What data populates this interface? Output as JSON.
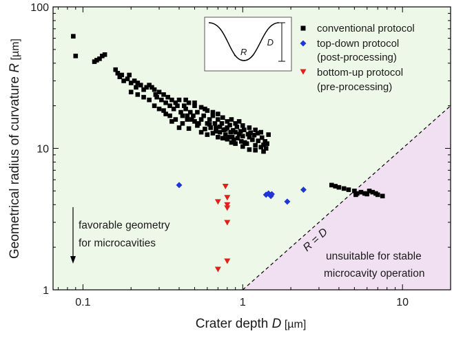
{
  "chart_data": {
    "type": "scatter",
    "xscale": "log",
    "yscale": "log",
    "xlim": [
      0.065,
      20
    ],
    "ylim": [
      1,
      100
    ],
    "x_ticks": [
      0.1,
      1,
      10
    ],
    "y_ticks": [
      1,
      10,
      100
    ],
    "x_tick_labels": [
      "0.1",
      "1",
      "10"
    ],
    "y_tick_labels": [
      "1",
      "10",
      "100"
    ],
    "xlabel": {
      "prefix": "Crater depth ",
      "var": "D",
      "unit": " [µm]"
    },
    "ylabel": {
      "prefix": "Geometrical radius of curvature ",
      "var": "R",
      "unit": " [µm]"
    },
    "grid": false,
    "legend_position": "top-right",
    "regions": {
      "favorable_color": "#eef8e8",
      "unsuitable_color": "#f1e0f1",
      "boundary": "R = D"
    },
    "line_label": "R = D",
    "annotations": {
      "favorable_line1": "favorable geometry",
      "favorable_line2": "for microcavities",
      "unsuitable_line1": "unsuitable for stable",
      "unsuitable_line2": "microcavity operation"
    },
    "inset": {
      "d_label": "D",
      "r_label": "R"
    },
    "series": [
      {
        "name": "conventional protocol",
        "marker": "square",
        "color": "#000000",
        "points": [
          [
            0.087,
            62
          ],
          [
            0.09,
            45
          ],
          [
            0.118,
            41
          ],
          [
            0.122,
            42
          ],
          [
            0.127,
            43
          ],
          [
            0.132,
            45
          ],
          [
            0.137,
            46
          ],
          [
            0.16,
            36
          ],
          [
            0.165,
            34
          ],
          [
            0.17,
            32
          ],
          [
            0.175,
            33
          ],
          [
            0.18,
            30
          ],
          [
            0.19,
            31
          ],
          [
            0.195,
            33
          ],
          [
            0.2,
            29
          ],
          [
            0.21,
            30
          ],
          [
            0.215,
            27
          ],
          [
            0.22,
            29
          ],
          [
            0.23,
            28
          ],
          [
            0.24,
            26
          ],
          [
            0.25,
            27
          ],
          [
            0.26,
            28
          ],
          [
            0.27,
            27
          ],
          [
            0.28,
            26
          ],
          [
            0.285,
            24
          ],
          [
            0.29,
            23
          ],
          [
            0.3,
            25
          ],
          [
            0.31,
            22
          ],
          [
            0.32,
            24
          ],
          [
            0.33,
            21
          ],
          [
            0.34,
            23
          ],
          [
            0.35,
            20
          ],
          [
            0.36,
            22
          ],
          [
            0.37,
            19
          ],
          [
            0.38,
            21
          ],
          [
            0.39,
            20
          ],
          [
            0.4,
            22
          ],
          [
            0.41,
            18
          ],
          [
            0.42,
            17
          ],
          [
            0.43,
            20
          ],
          [
            0.44,
            19
          ],
          [
            0.45,
            17
          ],
          [
            0.46,
            21
          ],
          [
            0.47,
            18
          ],
          [
            0.48,
            16
          ],
          [
            0.49,
            17
          ],
          [
            0.5,
            20
          ],
          [
            0.52,
            18
          ],
          [
            0.53,
            15
          ],
          [
            0.55,
            16
          ],
          [
            0.57,
            17
          ],
          [
            0.58,
            19
          ],
          [
            0.6,
            15
          ],
          [
            0.62,
            16
          ],
          [
            0.63,
            14
          ],
          [
            0.65,
            17
          ],
          [
            0.67,
            15
          ],
          [
            0.68,
            14
          ],
          [
            0.7,
            16
          ],
          [
            0.72,
            13
          ],
          [
            0.74,
            15
          ],
          [
            0.76,
            13.5
          ],
          [
            0.78,
            12.5
          ],
          [
            0.8,
            14
          ],
          [
            0.82,
            12
          ],
          [
            0.84,
            13
          ],
          [
            0.86,
            12
          ],
          [
            0.88,
            11.5
          ],
          [
            0.9,
            13
          ],
          [
            0.93,
            11.8
          ],
          [
            0.95,
            12.6
          ],
          [
            0.98,
            11.2
          ],
          [
            1.0,
            12.2
          ],
          [
            1.03,
            11
          ],
          [
            1.06,
            10.8
          ],
          [
            1.1,
            12
          ],
          [
            1.15,
            11.5
          ],
          [
            1.2,
            10.5
          ],
          [
            1.25,
            11.3
          ],
          [
            1.3,
            10.2
          ],
          [
            1.35,
            10.6
          ],
          [
            1.4,
            10
          ],
          [
            1.45,
            12.5
          ],
          [
            1.3,
            13
          ],
          [
            1.2,
            13.5
          ],
          [
            1.1,
            14
          ],
          [
            1.0,
            14.5
          ],
          [
            0.95,
            15.5
          ],
          [
            0.9,
            15
          ],
          [
            0.85,
            16
          ],
          [
            0.8,
            15.5
          ],
          [
            0.75,
            16.5
          ],
          [
            0.7,
            17.5
          ],
          [
            0.65,
            18
          ],
          [
            0.6,
            18.5
          ],
          [
            0.55,
            19.5
          ],
          [
            0.5,
            15.5
          ],
          [
            0.45,
            16
          ],
          [
            0.42,
            15
          ],
          [
            0.4,
            14
          ],
          [
            0.38,
            16
          ],
          [
            0.35,
            17
          ],
          [
            0.32,
            18.5
          ],
          [
            0.3,
            19
          ],
          [
            0.28,
            20
          ],
          [
            0.26,
            22
          ],
          [
            0.24,
            23
          ],
          [
            0.22,
            24
          ],
          [
            0.2,
            25
          ],
          [
            0.55,
            13
          ],
          [
            0.6,
            12.5
          ],
          [
            0.65,
            12.8
          ],
          [
            0.7,
            12
          ],
          [
            0.75,
            11.8
          ],
          [
            0.8,
            11.6
          ],
          [
            0.85,
            11
          ],
          [
            0.9,
            10.8
          ],
          [
            1.0,
            10.3
          ],
          [
            1.1,
            9.8
          ],
          [
            1.2,
            9.7
          ],
          [
            1.35,
            9.5
          ],
          [
            0.44,
            22
          ],
          [
            0.5,
            21
          ],
          [
            0.33,
            17.5
          ],
          [
            0.36,
            15.5
          ],
          [
            0.46,
            13.8
          ],
          [
            0.52,
            14.5
          ],
          [
            0.58,
            13.7
          ],
          [
            0.62,
            14.8
          ],
          [
            0.68,
            13.2
          ],
          [
            0.72,
            14.2
          ],
          [
            0.78,
            13.6
          ],
          [
            0.83,
            14.6
          ],
          [
            0.87,
            13.4
          ],
          [
            0.92,
            14.2
          ],
          [
            0.97,
            13.2
          ],
          [
            1.02,
            13.5
          ],
          [
            1.08,
            12.6
          ],
          [
            1.12,
            12.9
          ],
          [
            1.18,
            12.4
          ],
          [
            1.24,
            12.8
          ],
          [
            1.32,
            11.9
          ],
          [
            1.38,
            11.2
          ],
          [
            1.42,
            10.8
          ],
          [
            3.6,
            5.5
          ],
          [
            3.8,
            5.4
          ],
          [
            4.0,
            5.3
          ],
          [
            4.3,
            5.2
          ],
          [
            4.6,
            5.1
          ],
          [
            5.0,
            5.0
          ],
          [
            5.2,
            4.8
          ],
          [
            5.5,
            4.9
          ],
          [
            5.8,
            4.8
          ],
          [
            6.2,
            5.0
          ],
          [
            6.5,
            4.9
          ],
          [
            6.8,
            4.8
          ],
          [
            7.0,
            4.7
          ],
          [
            7.5,
            4.6
          ],
          [
            5.1,
            4.7
          ],
          [
            6.0,
            4.75
          ]
        ]
      },
      {
        "name": "top-down protocol",
        "name2": "(post-processing)",
        "marker": "diamond",
        "color": "#1f35d8",
        "points": [
          [
            0.4,
            5.5
          ],
          [
            1.4,
            4.7
          ],
          [
            1.45,
            4.8
          ],
          [
            1.5,
            4.6
          ],
          [
            1.52,
            4.75
          ],
          [
            1.9,
            4.2
          ],
          [
            2.4,
            5.1
          ]
        ]
      },
      {
        "name": "bottom-up protocol",
        "name2": "(pre-processing)",
        "marker": "triangle-down",
        "color": "#e0201b",
        "points": [
          [
            0.7,
            4.2
          ],
          [
            0.7,
            1.4
          ],
          [
            0.78,
            5.4
          ],
          [
            0.8,
            4.0
          ],
          [
            0.8,
            3.8
          ],
          [
            0.8,
            3.0
          ],
          [
            0.8,
            1.6
          ],
          [
            0.8,
            4.5
          ]
        ]
      }
    ]
  }
}
